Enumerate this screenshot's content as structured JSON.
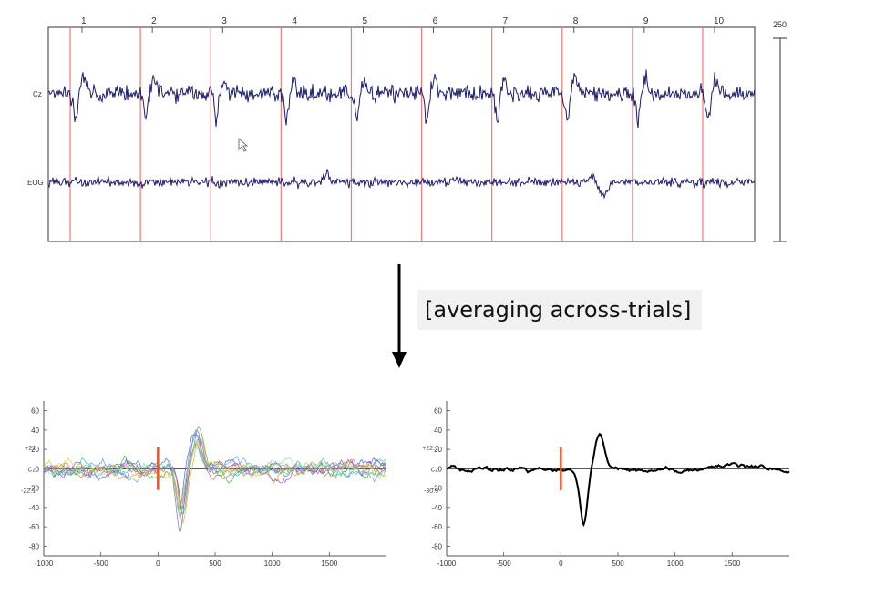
{
  "chart_data": [
    {
      "type": "line",
      "channels": [
        "Cz",
        "EOG"
      ],
      "trial_numbers": [
        "1",
        "2",
        "3",
        "4",
        "5",
        "6",
        "7",
        "8",
        "9",
        "10"
      ],
      "scale_label": "250",
      "marker_color": "#f07a7a",
      "trace_color": "#1c1c6e"
    },
    {
      "type": "line",
      "channel": "Cz",
      "xlim": [
        -1000,
        2000
      ],
      "ylim": [
        -90,
        70
      ],
      "xticks": [
        "-1000",
        "-500",
        "0",
        "500",
        "1000",
        "1500"
      ],
      "yticks": [
        "60",
        "40",
        "20",
        "0",
        "-20",
        "-40",
        "-60",
        "-80"
      ],
      "range_labels": {
        "upper": "+22",
        "lower": "-22.1"
      },
      "onset_color": "#e8552a",
      "series_colors": [
        "#e06060",
        "#40b040",
        "#4060e0",
        "#30c0c0",
        "#c040c0",
        "#e0a030",
        "#8060c0",
        "#60a0e0",
        "#d0d040",
        "#90e090"
      ]
    },
    {
      "type": "line",
      "channel": "Cz",
      "xlim": [
        -1000,
        2000
      ],
      "ylim": [
        -90,
        70
      ],
      "xticks": [
        "-1000",
        "-500",
        "0",
        "500",
        "1000",
        "1500"
      ],
      "yticks": [
        "60",
        "40",
        "20",
        "0",
        "-20",
        "-40",
        "-60",
        "-80"
      ],
      "range_labels": {
        "upper": "+22.7",
        "lower": "-30.9"
      },
      "onset_color": "#e8552a",
      "trace_color": "#000000"
    }
  ],
  "annotation": "[averaging across-trials]"
}
